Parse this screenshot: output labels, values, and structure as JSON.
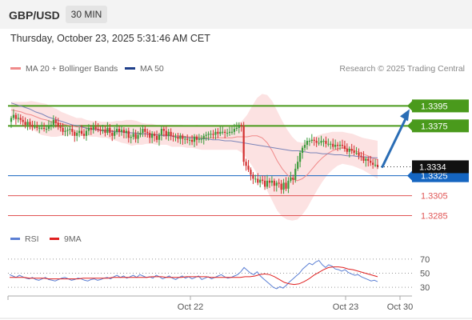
{
  "header": {
    "pair": "GBP/USD",
    "timeframe": "30 MIN",
    "timestamp": "Thursday, October 23, 2025 5:31:46 AM CET",
    "credit": "Research © 2025 Trading Central"
  },
  "colors": {
    "green": "#4a9a1c",
    "blue": "#1565c0",
    "red": "#e05555",
    "bull": "#3a9a3a",
    "bear": "#d32f2f",
    "band": "#fbd8d8",
    "ma20": "#f08a8a",
    "ma50": "#7b84b8",
    "rsi": "#5b7fd4",
    "rsi_ma": "#e02020",
    "arrow": "#2a6db5"
  },
  "chart_data": [
    {
      "type": "candlestick",
      "title": "",
      "legend": [
        "MA 20 + Bollinger Bands",
        "MA 50"
      ],
      "legend_placement": "top-left",
      "ylim": [
        1.3275,
        1.3425
      ],
      "x_tick_labels": [
        "Oct 22",
        "Oct 23",
        "Oct 30"
      ],
      "levels": [
        {
          "value": 1.3395,
          "label": "1.3395",
          "kind": "resistance",
          "color": "#4a9a1c"
        },
        {
          "value": 1.3375,
          "label": "1.3375",
          "kind": "resistance",
          "color": "#4a9a1c"
        },
        {
          "value": 1.3325,
          "label": "1.3325",
          "kind": "pivot",
          "color": "#1565c0"
        },
        {
          "value": 1.3305,
          "label": "1.3305",
          "kind": "support",
          "color": "#e05555"
        },
        {
          "value": 1.3285,
          "label": "1.3285",
          "kind": "support",
          "color": "#e05555"
        }
      ],
      "last_price": {
        "value": 1.3334,
        "label": "1.3334"
      },
      "arrow_target": 1.3395,
      "close_path": [
        1.3383,
        1.3386,
        1.3382,
        1.3383,
        1.3381,
        1.3379,
        1.3376,
        1.3379,
        1.3376,
        1.3374,
        1.3374,
        1.3373,
        1.3373,
        1.3373,
        1.3372,
        1.3372,
        1.3375,
        1.3376,
        1.3381,
        1.3378,
        1.3374,
        1.3373,
        1.3369,
        1.337,
        1.3371,
        1.3372,
        1.3369,
        1.3365,
        1.3368,
        1.337,
        1.3367,
        1.3365,
        1.337,
        1.3373,
        1.3371,
        1.3374,
        1.3372,
        1.3371,
        1.337,
        1.3371,
        1.3368,
        1.3373,
        1.3368,
        1.3365,
        1.3369,
        1.3372,
        1.3369,
        1.3371,
        1.3368,
        1.337,
        1.3363,
        1.3364,
        1.3367,
        1.3362,
        1.3366,
        1.3368,
        1.3372,
        1.3369,
        1.3368,
        1.3363,
        1.3367,
        1.3365,
        1.3361,
        1.3366,
        1.3372,
        1.337,
        1.3365,
        1.3369,
        1.3365,
        1.3364,
        1.3364,
        1.3362,
        1.3365,
        1.3362,
        1.3362,
        1.3361,
        1.3361,
        1.3359,
        1.3364,
        1.3361,
        1.3362,
        1.3362,
        1.3365,
        1.3366,
        1.3367,
        1.3367,
        1.3366,
        1.3369,
        1.3367,
        1.3369,
        1.3369,
        1.3368,
        1.3368,
        1.3369,
        1.3369,
        1.3372,
        1.3373,
        1.3376,
        1.3375,
        1.3339,
        1.3335,
        1.3331,
        1.3326,
        1.3322,
        1.3322,
        1.3318,
        1.3321,
        1.332,
        1.3314,
        1.332,
        1.3318,
        1.332,
        1.3315,
        1.3318,
        1.3317,
        1.3311,
        1.3318,
        1.3312,
        1.332,
        1.3323,
        1.3321,
        1.3332,
        1.3339,
        1.3348,
        1.3353,
        1.3356,
        1.336,
        1.336,
        1.3361,
        1.336,
        1.3358,
        1.3358,
        1.336,
        1.336,
        1.3357,
        1.3357,
        1.3357,
        1.3354,
        1.3356,
        1.3355,
        1.3356,
        1.3355,
        1.3352,
        1.3349,
        1.3352,
        1.335,
        1.3348,
        1.3348,
        1.3345,
        1.3344,
        1.334,
        1.3342,
        1.334,
        1.3338,
        1.3336,
        1.3336,
        1.3334
      ],
      "ma20_path": [
        1.3391,
        1.339,
        1.3389,
        1.3387,
        1.3386,
        1.3384,
        1.3382,
        1.3381,
        1.3379,
        1.3378,
        1.3377,
        1.3376,
        1.3375,
        1.3374,
        1.3374,
        1.3373,
        1.3372,
        1.3372,
        1.3371,
        1.3371,
        1.337,
        1.337,
        1.3369,
        1.3369,
        1.3368,
        1.3368,
        1.3367,
        1.3367,
        1.3367,
        1.3366,
        1.3366,
        1.3366,
        1.3365,
        1.3365,
        1.3365,
        1.3364,
        1.3364,
        1.3364,
        1.3363,
        1.3363,
        1.3363,
        1.3363,
        1.3363,
        1.3363,
        1.3363,
        1.3364,
        1.3364,
        1.3364,
        1.3365,
        1.3365,
        1.3363,
        1.3358,
        1.335,
        1.334,
        1.3332,
        1.3326,
        1.3322,
        1.332,
        1.3322,
        1.3326,
        1.3332,
        1.3338,
        1.3343,
        1.3347,
        1.335,
        1.3352,
        1.3353,
        1.3352,
        1.3351,
        1.3349,
        1.3347,
        1.3345,
        1.3343,
        1.3341
      ],
      "ma50_path": [
        1.3398,
        1.3396,
        1.3394,
        1.3392,
        1.3389,
        1.3387,
        1.3384,
        1.3382,
        1.338,
        1.3378,
        1.3376,
        1.3375,
        1.3373,
        1.3372,
        1.3371,
        1.337,
        1.337,
        1.3369,
        1.3369,
        1.3368,
        1.3368,
        1.3367,
        1.3367,
        1.3366,
        1.3366,
        1.3365,
        1.3365,
        1.3364,
        1.3364,
        1.3363,
        1.3363,
        1.3362,
        1.3362,
        1.3361,
        1.3361,
        1.336,
        1.336,
        1.3359,
        1.3358,
        1.3357,
        1.3356,
        1.3355,
        1.3354,
        1.3353,
        1.3352,
        1.3351,
        1.335,
        1.335,
        1.3349,
        1.3348,
        1.3348,
        1.3347,
        1.3347,
        1.3346,
        1.3346,
        1.3345,
        1.3345,
        1.3344,
        1.3344,
        1.3343,
        1.3343
      ],
      "band_width_path": [
        0.0008,
        0.0009,
        0.001,
        0.0012,
        0.0014,
        0.0015,
        0.0016,
        0.0016,
        0.0015,
        0.0014,
        0.0012,
        0.0011,
        0.001,
        0.0009,
        0.0009,
        0.0008,
        0.0008,
        0.0008,
        0.0008,
        0.0008,
        0.0009,
        0.001,
        0.0011,
        0.0012,
        0.0013,
        0.0012,
        0.0011,
        0.001,
        0.001,
        0.001,
        0.001,
        0.001,
        0.0011,
        0.0011,
        0.0011,
        0.0011,
        0.0011,
        0.0012,
        0.0012,
        0.0012,
        0.0012,
        0.0012,
        0.0012,
        0.0012,
        0.0012,
        0.0013,
        0.0016,
        0.0022,
        0.003,
        0.0038,
        0.0044,
        0.0048,
        0.005,
        0.005,
        0.0048,
        0.0045,
        0.0042,
        0.0039,
        0.0036,
        0.0033,
        0.003,
        0.0027,
        0.0024,
        0.0021,
        0.0019,
        0.0017,
        0.0016,
        0.0016,
        0.0016,
        0.0016,
        0.0016,
        0.0017,
        0.0018,
        0.0019
      ]
    },
    {
      "type": "line",
      "title": "",
      "legend": [
        "RSI",
        "9MA"
      ],
      "legend_placement": "top-left",
      "ylim": [
        20,
        80
      ],
      "y_ticks": [
        70,
        50,
        30
      ],
      "rsi_path": [
        48,
        46,
        44,
        47,
        45,
        43,
        42,
        44,
        41,
        40,
        42,
        44,
        41,
        40,
        39,
        41,
        43,
        44,
        42,
        40,
        41,
        43,
        42,
        40,
        39,
        41,
        42,
        40,
        41,
        43,
        44,
        42,
        45,
        47,
        44,
        46,
        43,
        45,
        47,
        44,
        48,
        46,
        44,
        45,
        43,
        47,
        45,
        42,
        44,
        46,
        43,
        41,
        44,
        46,
        43,
        45,
        42,
        44,
        46,
        41,
        43,
        45,
        42,
        44,
        46,
        48,
        45,
        43,
        44,
        46,
        48,
        52,
        58,
        54,
        50,
        48,
        52,
        46,
        42,
        38,
        34,
        30,
        28,
        31,
        29,
        33,
        38,
        42,
        46,
        50,
        56,
        60,
        64,
        62,
        66,
        68,
        62,
        58,
        62,
        60,
        56,
        55,
        53,
        55,
        51,
        49,
        47,
        48,
        45,
        43,
        41,
        39,
        40,
        38
      ],
      "ma_path": [
        44,
        44,
        44,
        44,
        43,
        43,
        43,
        43,
        42,
        42,
        42,
        42,
        42,
        42,
        42,
        43,
        43,
        43,
        43,
        43,
        43,
        44,
        44,
        44,
        44,
        44,
        44,
        44,
        44,
        45,
        45,
        45,
        44,
        44,
        44,
        44,
        45,
        45,
        45,
        45,
        45,
        44,
        44,
        44,
        44,
        44,
        44,
        44,
        45,
        45,
        46,
        48,
        49,
        48,
        45,
        41,
        37,
        35,
        34,
        35,
        38,
        42,
        47,
        51,
        55,
        58,
        59,
        59,
        58,
        56,
        55,
        53,
        51,
        49,
        47,
        45
      ]
    }
  ]
}
